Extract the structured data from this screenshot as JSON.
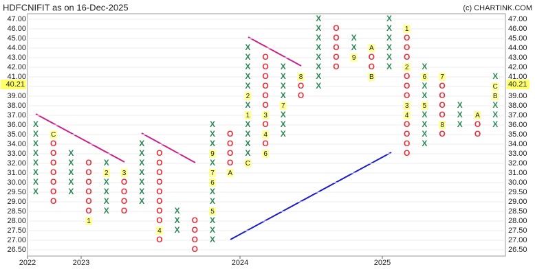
{
  "chart_data": {
    "type": "pnf",
    "title": "HDFCNIFIT as on 16-Dec-2025",
    "source": "(c) CHARTINK.COM",
    "last_price": 40.21,
    "x_color": "#2e8b57",
    "o_color": "#e8303a",
    "yticks": [
      {
        "value": 47,
        "label": "47.00"
      },
      {
        "value": 46,
        "label": "46.00"
      },
      {
        "value": 45,
        "label": "45.00"
      },
      {
        "value": 44,
        "label": "44.00"
      },
      {
        "value": 43,
        "label": "43.00"
      },
      {
        "value": 42,
        "label": "42.00"
      },
      {
        "value": 41,
        "label": "41.00"
      },
      {
        "value": 40,
        "label": "40.00"
      },
      {
        "value": 39,
        "label": "39.00"
      },
      {
        "value": 38,
        "label": "38.00"
      },
      {
        "value": 37,
        "label": "37.00"
      },
      {
        "value": 36,
        "label": "36.00"
      },
      {
        "value": 35,
        "label": "35.00"
      },
      {
        "value": 34,
        "label": "34.00"
      },
      {
        "value": 33,
        "label": "33.00"
      },
      {
        "value": 32,
        "label": "32.00"
      },
      {
        "value": 31,
        "label": "31.00"
      },
      {
        "value": 30,
        "label": "30.00"
      },
      {
        "value": 29.5,
        "label": "29.50"
      },
      {
        "value": 29,
        "label": "29.00"
      },
      {
        "value": 28.5,
        "label": "28.50"
      },
      {
        "value": 28,
        "label": "28.00"
      },
      {
        "value": 27.5,
        "label": "27.50"
      },
      {
        "value": 27,
        "label": "27.00"
      },
      {
        "value": 26.5,
        "label": "26.50"
      }
    ],
    "x_labels": [
      "2022",
      "2023",
      "2024",
      "2025"
    ],
    "columns": [
      {
        "kind": "X",
        "high": 36,
        "low": 29.5,
        "marks": []
      },
      {
        "kind": "O",
        "high": 35,
        "low": 29,
        "marks": [
          {
            "value": 35,
            "label": "C"
          }
        ]
      },
      {
        "kind": "X",
        "high": 33,
        "low": 29.5,
        "marks": []
      },
      {
        "kind": "O",
        "high": 32,
        "low": 28,
        "marks": [
          {
            "value": 28,
            "label": "1"
          }
        ]
      },
      {
        "kind": "X",
        "high": 32,
        "low": 28.5,
        "marks": [
          {
            "value": 31,
            "label": "2"
          }
        ]
      },
      {
        "kind": "O",
        "high": 31,
        "low": 28.5,
        "marks": [
          {
            "value": 31,
            "label": "3"
          }
        ]
      },
      {
        "kind": "X",
        "high": 34,
        "low": 29,
        "marks": []
      },
      {
        "kind": "O",
        "high": 33,
        "low": 27,
        "marks": [
          {
            "value": 27.5,
            "label": "4"
          }
        ]
      },
      {
        "kind": "X",
        "high": 28.5,
        "low": 27.5,
        "marks": []
      },
      {
        "kind": "O",
        "high": 28,
        "low": 26.5,
        "marks": []
      },
      {
        "kind": "X",
        "high": 36,
        "low": 27,
        "marks": [
          {
            "value": 28.5,
            "label": "5"
          },
          {
            "value": 30,
            "label": "6"
          },
          {
            "value": 31,
            "label": "7"
          },
          {
            "value": 33,
            "label": "9"
          }
        ]
      },
      {
        "kind": "O",
        "high": 35,
        "low": 31,
        "marks": [
          {
            "value": 31,
            "label": "A"
          }
        ]
      },
      {
        "kind": "X",
        "high": 44,
        "low": 32,
        "marks": [
          {
            "value": 32,
            "label": "C"
          },
          {
            "value": 37,
            "label": "1"
          },
          {
            "value": 39,
            "label": "2"
          }
        ]
      },
      {
        "kind": "O",
        "high": 43,
        "low": 33,
        "marks": [
          {
            "value": 37,
            "label": "3"
          },
          {
            "value": 35,
            "label": "4"
          },
          {
            "value": 33,
            "label": "6"
          }
        ]
      },
      {
        "kind": "X",
        "high": 42,
        "low": 35,
        "marks": [
          {
            "value": 38,
            "label": "7"
          }
        ]
      },
      {
        "kind": "O",
        "high": 41,
        "low": 39,
        "marks": [
          {
            "value": 41,
            "label": "8"
          }
        ]
      },
      {
        "kind": "X",
        "high": 47,
        "low": 40,
        "marks": []
      },
      {
        "kind": "O",
        "high": 46,
        "low": 42,
        "marks": []
      },
      {
        "kind": "X",
        "high": 45,
        "low": 43,
        "marks": [
          {
            "value": 43,
            "label": "9"
          }
        ]
      },
      {
        "kind": "O",
        "high": 44,
        "low": 41,
        "marks": [
          {
            "value": 44,
            "label": "A"
          },
          {
            "value": 41,
            "label": "B"
          }
        ]
      },
      {
        "kind": "X",
        "high": 47,
        "low": 42,
        "marks": []
      },
      {
        "kind": "O",
        "high": 46,
        "low": 33,
        "marks": [
          {
            "value": 46,
            "label": "1"
          },
          {
            "value": 42,
            "label": "2"
          },
          {
            "value": 38,
            "label": "3"
          },
          {
            "value": 37,
            "label": "4"
          }
        ]
      },
      {
        "kind": "X",
        "high": 42,
        "low": 34,
        "marks": [
          {
            "value": 41,
            "label": "6"
          },
          {
            "value": 38,
            "label": "5"
          }
        ]
      },
      {
        "kind": "O",
        "high": 41,
        "low": 35,
        "marks": [
          {
            "value": 41,
            "label": "7"
          },
          {
            "value": 36,
            "label": "8"
          }
        ]
      },
      {
        "kind": "X",
        "high": 38,
        "low": 36,
        "marks": []
      },
      {
        "kind": "O",
        "high": 37,
        "low": 35,
        "marks": [
          {
            "value": 37,
            "label": "A"
          }
        ]
      },
      {
        "kind": "X",
        "high": 41,
        "low": 36,
        "marks": [
          {
            "value": 40,
            "label": "C"
          },
          {
            "value": 39,
            "label": "B"
          }
        ]
      }
    ]
  }
}
